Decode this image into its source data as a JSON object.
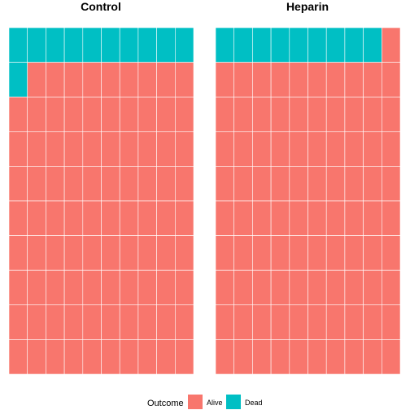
{
  "chart_data": {
    "type": "waffle",
    "grid": {
      "columns": 10,
      "rows": 10,
      "fill_order": "row-major from top-left"
    },
    "panels": [
      {
        "title": "Control",
        "counts": {
          "Dead": 11,
          "Alive": 89
        }
      },
      {
        "title": "Heparin",
        "counts": {
          "Dead": 9,
          "Alive": 91
        }
      }
    ],
    "legend": {
      "title": "Outcome",
      "placement": "bottom",
      "entries": [
        {
          "name": "Alive",
          "color": "#F8766D"
        },
        {
          "name": "Dead",
          "color": "#00BFC4"
        }
      ]
    },
    "stack_order": [
      "Dead",
      "Alive"
    ],
    "tile_border_color": "#ffffff"
  }
}
